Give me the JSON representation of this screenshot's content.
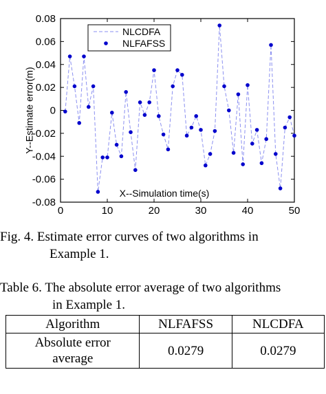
{
  "chart_data": {
    "type": "line",
    "xlabel": "X--Simulation time(s)",
    "ylabel": "Y--Estimate error(m)",
    "xlim": [
      0,
      50
    ],
    "ylim": [
      -0.08,
      0.08
    ],
    "xticks": [
      "0",
      "10",
      "20",
      "30",
      "40",
      "50"
    ],
    "yticks": [
      "0.08",
      "0.06",
      "0.04",
      "0.02",
      "0",
      "-0.02",
      "-0.04",
      "-0.06",
      "-0.08"
    ],
    "grid": false,
    "legend_position": "top-center",
    "x": [
      1,
      2,
      3,
      4,
      5,
      6,
      7,
      8,
      9,
      10,
      11,
      12,
      13,
      14,
      15,
      16,
      17,
      18,
      19,
      20,
      21,
      22,
      23,
      24,
      25,
      26,
      27,
      28,
      29,
      30,
      31,
      32,
      33,
      34,
      35,
      36,
      37,
      38,
      39,
      40,
      41,
      42,
      43,
      44,
      45,
      46,
      47,
      48,
      49,
      50
    ],
    "series": [
      {
        "name": "NLCDFA",
        "style": "dashed-line",
        "color": "#8a8ff0",
        "values": [
          -0.001,
          0.047,
          0.021,
          -0.011,
          0.047,
          0.003,
          0.021,
          -0.071,
          -0.041,
          -0.041,
          -0.002,
          -0.03,
          -0.04,
          0.016,
          -0.019,
          -0.052,
          0.007,
          -0.004,
          0.007,
          0.035,
          -0.005,
          -0.021,
          -0.034,
          0.021,
          0.035,
          0.031,
          -0.022,
          -0.015,
          -0.005,
          -0.017,
          -0.048,
          -0.038,
          -0.018,
          0.074,
          0.021,
          0.0,
          -0.037,
          0.014,
          -0.047,
          0.022,
          -0.029,
          -0.017,
          -0.046,
          -0.025,
          0.057,
          -0.038,
          -0.068,
          -0.015,
          -0.006,
          -0.022
        ]
      },
      {
        "name": "NLFAFSS",
        "style": "markers",
        "color": "#0000cc",
        "values": [
          -0.001,
          0.047,
          0.021,
          -0.011,
          0.047,
          0.003,
          0.021,
          -0.071,
          -0.041,
          -0.041,
          -0.002,
          -0.03,
          -0.04,
          0.016,
          -0.019,
          -0.052,
          0.007,
          -0.004,
          0.007,
          0.035,
          -0.005,
          -0.021,
          -0.034,
          0.021,
          0.035,
          0.031,
          -0.022,
          -0.015,
          -0.005,
          -0.017,
          -0.048,
          -0.038,
          -0.018,
          0.074,
          0.021,
          0.0,
          -0.037,
          0.014,
          -0.047,
          0.022,
          -0.029,
          -0.017,
          -0.046,
          -0.025,
          0.057,
          -0.038,
          -0.068,
          -0.015,
          -0.006,
          -0.022
        ]
      }
    ]
  },
  "figure_caption": {
    "line1": "Fig. 4.  Estimate error curves of two algorithms in",
    "line2": "Example 1."
  },
  "table_caption": {
    "line1": "Table 6. The absolute error average of two algorithms",
    "line2": "in Example 1."
  },
  "table": {
    "headers": [
      "Algorithm",
      "NLFAFSS",
      "NLCDFA"
    ],
    "row_label_line1": "Absolute error",
    "row_label_line2": "average",
    "values": [
      "0.0279",
      "0.0279"
    ]
  }
}
